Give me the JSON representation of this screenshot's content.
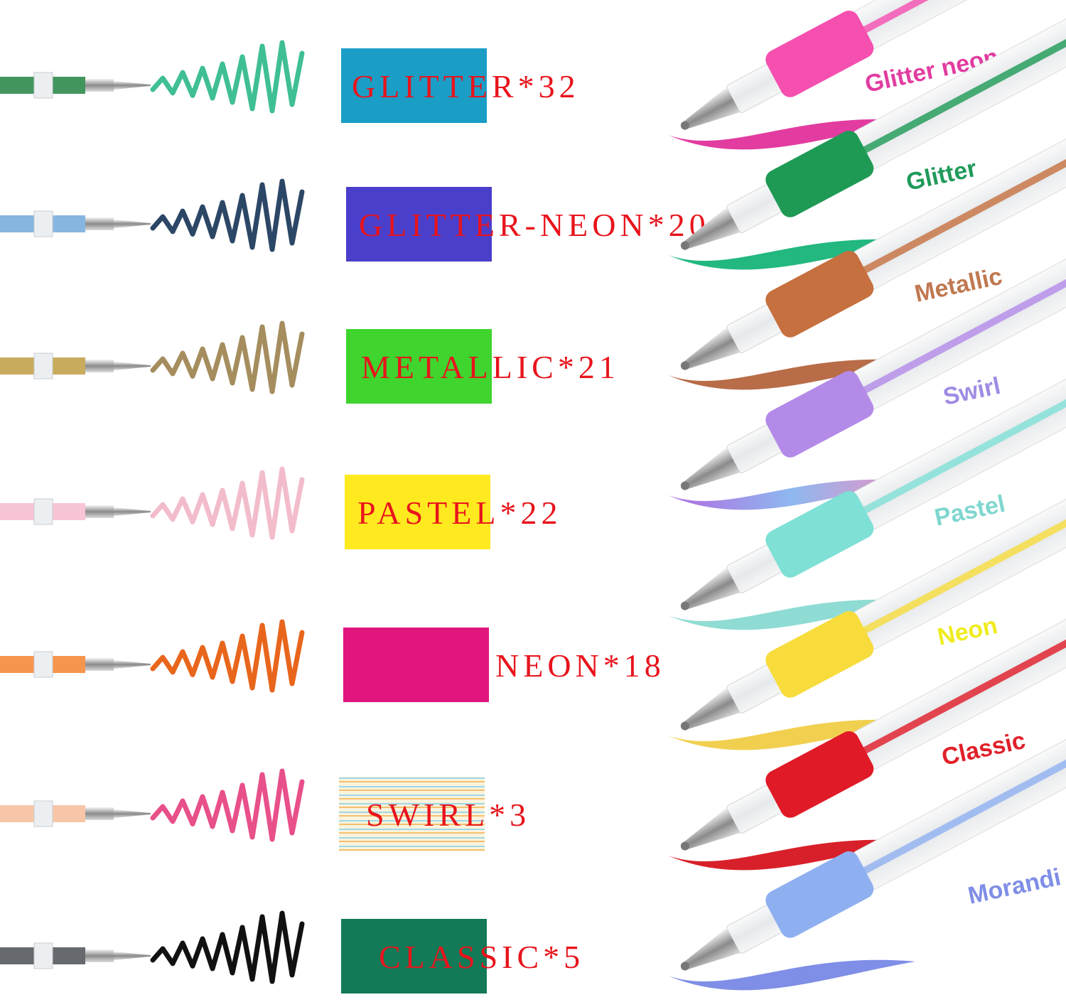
{
  "left": {
    "rows": [
      {
        "label": "GLITTER*32"
      },
      {
        "label": "GLITTER-NEON*20"
      },
      {
        "label": "METALLIC*21"
      },
      {
        "label": "PASTEL*22"
      },
      {
        "label": "NEON*18"
      },
      {
        "label": "SWIRL*3"
      },
      {
        "label": "CLASSIC*5"
      }
    ]
  },
  "right": {
    "pens": [
      {
        "label": "Glitter neon"
      },
      {
        "label": "Glitter"
      },
      {
        "label": "Metallic"
      },
      {
        "label": "Swirl"
      },
      {
        "label": "Pastel"
      },
      {
        "label": "Neon"
      },
      {
        "label": "Classic"
      },
      {
        "label": "Morandi"
      }
    ]
  }
}
